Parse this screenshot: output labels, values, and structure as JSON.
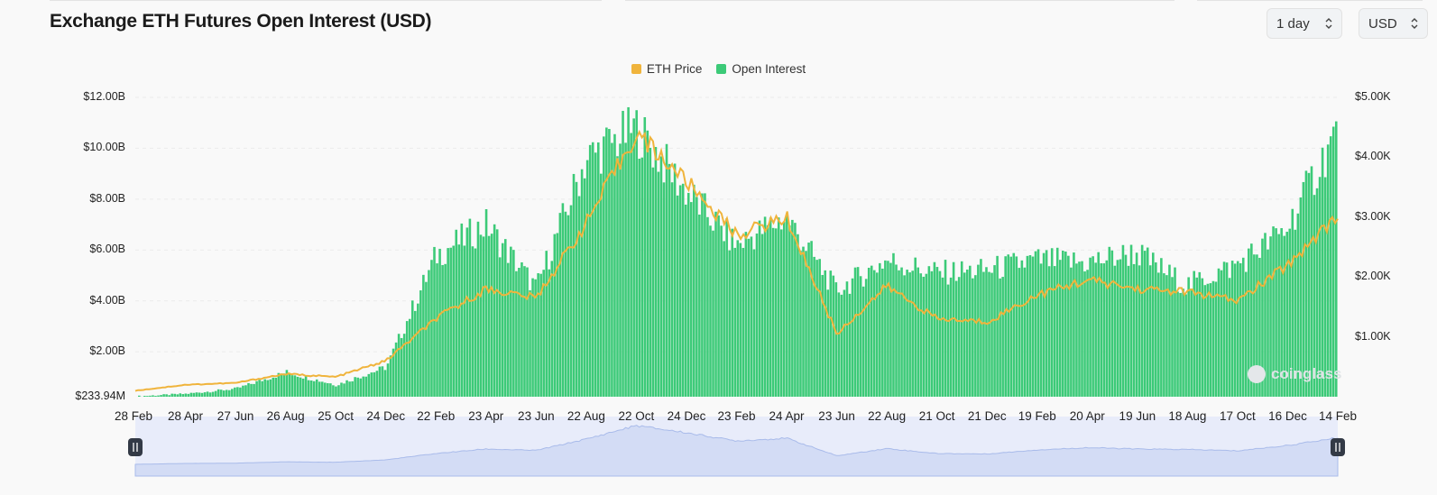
{
  "header": {
    "title": "Exchange ETH Futures Open Interest (USD)",
    "interval_select": "1 day",
    "currency_select": "USD"
  },
  "colors": {
    "eth_price": "#f0b43c",
    "open_interest": "#3cca78",
    "navigator_fill": "#d3dcf5",
    "navigator_line": "#a9bbea",
    "grid": "#ebebeb"
  },
  "watermark": "coinglass",
  "chart_data": {
    "type": "bar",
    "title": "Exchange ETH Futures Open Interest (USD)",
    "legend_position": "top-center",
    "grid": true,
    "x_ticks": [
      "28 Feb",
      "28 Apr",
      "27 Jun",
      "26 Aug",
      "25 Oct",
      "24 Dec",
      "22 Feb",
      "23 Apr",
      "23 Jun",
      "22 Aug",
      "22 Oct",
      "24 Dec",
      "23 Feb",
      "24 Apr",
      "23 Jun",
      "22 Aug",
      "21 Oct",
      "21 Dec",
      "19 Feb",
      "20 Apr",
      "19 Jun",
      "18 Aug",
      "17 Oct",
      "16 Dec",
      "14 Feb"
    ],
    "y_left": {
      "ticks": [
        "$233.94M",
        "$2.00B",
        "$4.00B",
        "$6.00B",
        "$8.00B",
        "$10.00B",
        "$12.00B"
      ],
      "range": [
        0.234,
        12.0
      ],
      "unit": "B USD"
    },
    "y_right": {
      "ticks": [
        "$1.00K",
        "$2.00K",
        "$3.00K",
        "$4.00K",
        "$5.00K"
      ],
      "range": [
        0,
        5.0
      ],
      "unit": "K USD"
    },
    "x": [
      "28 Feb",
      "28 Apr",
      "27 Jun",
      "26 Aug",
      "25 Oct",
      "24 Dec",
      "22 Feb",
      "23 Apr",
      "23 Jun",
      "22 Aug",
      "22 Oct",
      "24 Dec",
      "23 Feb",
      "24 Apr",
      "23 Jun",
      "22 Aug",
      "21 Oct",
      "21 Dec",
      "19 Feb",
      "20 Apr",
      "19 Jun",
      "18 Aug",
      "17 Oct",
      "16 Dec",
      "14 Feb"
    ],
    "series": [
      {
        "name": "Open Interest",
        "type": "bar",
        "axis": "left",
        "values": [
          0.25,
          0.35,
          0.55,
          1.2,
          0.7,
          1.4,
          5.8,
          7.0,
          4.5,
          9.6,
          10.8,
          8.3,
          6.2,
          7.3,
          4.4,
          5.6,
          5.1,
          5.2,
          5.6,
          5.5,
          5.9,
          4.6,
          5.4,
          6.8,
          10.6
        ]
      },
      {
        "name": "ETH Price",
        "type": "line",
        "axis": "right",
        "values": [
          0.1,
          0.2,
          0.23,
          0.38,
          0.33,
          0.6,
          1.3,
          1.8,
          1.65,
          2.9,
          4.4,
          3.6,
          2.7,
          3.0,
          1.05,
          1.85,
          1.3,
          1.25,
          1.7,
          1.95,
          1.8,
          1.75,
          1.6,
          2.2,
          3.05
        ]
      }
    ]
  }
}
